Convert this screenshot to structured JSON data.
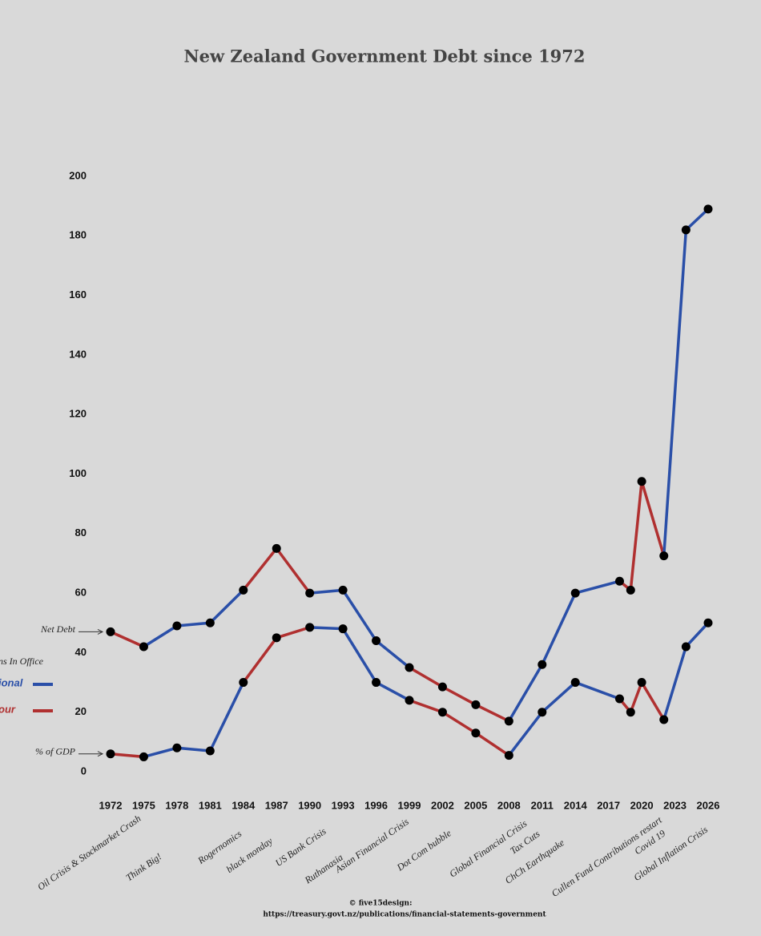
{
  "chart_data": {
    "type": "line",
    "title": "New Zealand Government Debt since 1972",
    "x": [
      1972,
      1975,
      1978,
      1981,
      1984,
      1987,
      1990,
      1993,
      1996,
      1999,
      2002,
      2005,
      2008,
      2011,
      2014,
      2018,
      2019,
      2020,
      2022,
      2024,
      2026
    ],
    "xlim": [
      1972,
      2026
    ],
    "xticks": [
      1972,
      1975,
      1978,
      1981,
      1984,
      1987,
      1990,
      1993,
      1996,
      1999,
      2002,
      2005,
      2008,
      2011,
      2014,
      2017,
      2020,
      2023,
      2026
    ],
    "ylim": [
      0,
      200
    ],
    "yticks": [
      0,
      20,
      40,
      60,
      80,
      100,
      120,
      140,
      160,
      180,
      200
    ],
    "series": [
      {
        "name": "Net Debt",
        "values": [
          47,
          42,
          49,
          50,
          61,
          75,
          60,
          61,
          44,
          35,
          28.5,
          22.5,
          17,
          36,
          60,
          64,
          61,
          97.5,
          72.5,
          182,
          189
        ],
        "segment_colors": [
          "#b03030",
          "#2a4fa8",
          "#2a4fa8",
          "#2a4fa8",
          "#b03030",
          "#b03030",
          "#2a4fa8",
          "#2a4fa8",
          "#2a4fa8",
          "#b03030",
          "#b03030",
          "#b03030",
          "#2a4fa8",
          "#2a4fa8",
          "#2a4fa8",
          "#b03030",
          "#b03030",
          "#b03030",
          "#2a4fa8",
          "#2a4fa8"
        ]
      },
      {
        "name": "% of GDP",
        "values": [
          6,
          5,
          8,
          7,
          30,
          45,
          48.5,
          48,
          30,
          24,
          20,
          13,
          5.5,
          20,
          30,
          24.5,
          20,
          30,
          17.5,
          42,
          50
        ],
        "segment_colors": [
          "#b03030",
          "#2a4fa8",
          "#2a4fa8",
          "#2a4fa8",
          "#b03030",
          "#b03030",
          "#2a4fa8",
          "#2a4fa8",
          "#2a4fa8",
          "#b03030",
          "#b03030",
          "#b03030",
          "#2a4fa8",
          "#2a4fa8",
          "#2a4fa8",
          "#b03030",
          "#b03030",
          "#b03030",
          "#2a4fa8",
          "#2a4fa8"
        ]
      }
    ],
    "marker_color": "#000000",
    "legend": {
      "title": "ns In Office",
      "entries": [
        {
          "label": "ional",
          "color": "#2a4fa8"
        },
        {
          "label": "our",
          "color": "#b03030"
        }
      ]
    },
    "annotations": [
      "Oil Crisis & Stockmarket Crash",
      "Think Big!",
      "Rogernomics",
      "black monday",
      "US Bank Crisis",
      "Ruthanasia",
      "Asian Financial Crisis",
      "Dot Com bubble",
      "Global Financial Crisis",
      "Tax Cuts",
      "ChCh Earthquake",
      "Cullen Fund Contributions restart",
      "Covid 19",
      "Global Inflation Crisis"
    ],
    "credit": "© five15design:",
    "source": "https://treasury.govt.nz/publications/financial-statements-government"
  }
}
